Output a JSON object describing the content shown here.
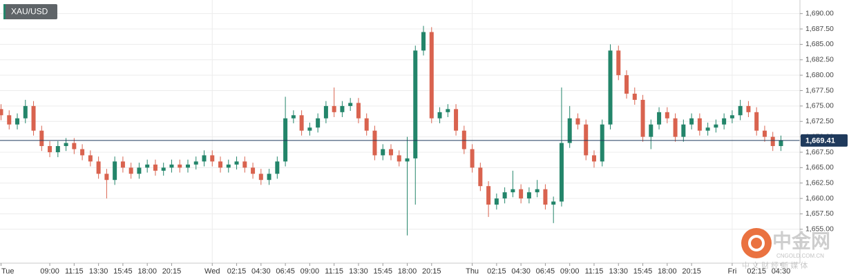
{
  "chart_data": {
    "type": "candlestick",
    "title": "XAU/USD",
    "categories": [
      "Tue",
      null,
      null,
      null,
      null,
      null,
      "09:00",
      null,
      null,
      "11:15",
      null,
      null,
      "13:30",
      null,
      null,
      "15:45",
      null,
      null,
      "18:00",
      null,
      null,
      "20:15",
      null,
      null,
      null,
      null,
      "Wed",
      null,
      null,
      "02:15",
      null,
      null,
      "04:30",
      null,
      null,
      "06:45",
      null,
      null,
      "09:00",
      null,
      null,
      "11:15",
      null,
      null,
      "13:30",
      null,
      null,
      "15:45",
      null,
      null,
      "18:00",
      null,
      null,
      "20:15",
      null,
      null,
      null,
      null,
      "Thu",
      null,
      null,
      "02:15",
      null,
      null,
      "04:30",
      null,
      null,
      "06:45",
      null,
      null,
      "09:00",
      null,
      null,
      "11:15",
      null,
      null,
      "13:30",
      null,
      null,
      "15:45",
      null,
      null,
      "18:00",
      null,
      null,
      "20:15",
      null,
      null,
      null,
      null,
      "Fri",
      null,
      null,
      "02:15",
      null,
      null,
      "04:30"
    ],
    "day_breaks": [
      26,
      58,
      90
    ],
    "open": [
      1674.5,
      1673.5,
      1672,
      1673,
      1675,
      1671,
      1668.5,
      1667.5,
      1668.5,
      1669,
      1668,
      1667,
      1666,
      1664,
      1663,
      1666,
      1665,
      1664,
      1665,
      1665.5,
      1664.5,
      1665,
      1665.5,
      1665,
      1665.5,
      1666,
      1667,
      1666,
      1665,
      1665.5,
      1666,
      1665,
      1664,
      1663,
      1664,
      1666,
      1673,
      1673.5,
      1671,
      1671.5,
      1673,
      1675,
      1674,
      1675,
      1675.5,
      1673,
      1671,
      1667,
      1668,
      1667,
      1666,
      1666.5,
      1684,
      1687,
      1673,
      1674,
      1674.5,
      1671,
      1668,
      1665,
      1662,
      1659,
      1660,
      1661,
      1661.5,
      1660,
      1661,
      1661.5,
      1659,
      1659.5,
      1669,
      1673,
      1672,
      1667,
      1666,
      1672,
      1684,
      1680,
      1677,
      1676,
      1670,
      1672,
      1674,
      1673,
      1670,
      1672,
      1673,
      1671,
      1671.5,
      1672,
      1673,
      1673.5,
      1675,
      1674,
      1671,
      1670,
      1668.5
    ],
    "high": [
      1675.3,
      1674.3,
      1673.8,
      1676,
      1675.8,
      1671.8,
      1669.3,
      1669.3,
      1669.8,
      1669.8,
      1668.8,
      1667.8,
      1666.8,
      1664.8,
      1666.8,
      1666.8,
      1665.8,
      1665.8,
      1666.3,
      1666.3,
      1665.8,
      1666.3,
      1666.3,
      1666.3,
      1666.8,
      1667.8,
      1667.8,
      1666.8,
      1666.3,
      1666.8,
      1666.8,
      1665.8,
      1664.8,
      1664.8,
      1666.8,
      1676.5,
      1674.3,
      1674.3,
      1672.3,
      1673.8,
      1675.8,
      1678,
      1675.8,
      1676.3,
      1676.3,
      1673.8,
      1671.8,
      1668.8,
      1668.8,
      1667.8,
      1670,
      1684.8,
      1688,
      1687.8,
      1674.8,
      1675.3,
      1675.3,
      1671.8,
      1668.8,
      1665.8,
      1662.8,
      1660.8,
      1661.8,
      1664.5,
      1662.3,
      1661.8,
      1663,
      1662.3,
      1660.3,
      1678,
      1675,
      1673.8,
      1672.8,
      1667.8,
      1672.8,
      1685,
      1684.8,
      1680.8,
      1678,
      1676.8,
      1672.8,
      1674.8,
      1674.8,
      1673.8,
      1672.8,
      1673.8,
      1673.8,
      1672.3,
      1672.8,
      1673.8,
      1674.3,
      1676,
      1675.8,
      1674.8,
      1671.8,
      1670.8,
      1670.2
    ],
    "low": [
      1672.7,
      1671.2,
      1671.2,
      1672.2,
      1670.2,
      1667.7,
      1666.7,
      1666.7,
      1667.7,
      1667.2,
      1666.2,
      1665.2,
      1663.2,
      1660,
      1662.2,
      1664.2,
      1663.2,
      1663.2,
      1664.2,
      1663.7,
      1663.7,
      1664.2,
      1664.2,
      1664.2,
      1664.7,
      1665.2,
      1665.2,
      1664.2,
      1664.2,
      1664.7,
      1664.2,
      1663.2,
      1662.2,
      1662.2,
      1663.2,
      1665.2,
      1672.2,
      1670.2,
      1670.2,
      1670.7,
      1672.2,
      1673.2,
      1673.2,
      1674.2,
      1672.2,
      1670.2,
      1666.2,
      1666.2,
      1666.2,
      1665.2,
      1654,
      1659,
      1683.2,
      1672.2,
      1672.2,
      1673.2,
      1670.2,
      1667.2,
      1664.2,
      1661.2,
      1657,
      1658.2,
      1659.2,
      1660.2,
      1659.2,
      1659.2,
      1660.2,
      1658.2,
      1656,
      1658.7,
      1668.2,
      1671.2,
      1666.2,
      1665,
      1665.2,
      1671.2,
      1679.2,
      1676.2,
      1675.2,
      1669.2,
      1668,
      1671.2,
      1672.2,
      1669.2,
      1669.2,
      1671.2,
      1670.2,
      1670.2,
      1670.7,
      1671.2,
      1672.2,
      1672.7,
      1673.2,
      1670.2,
      1669.2,
      1667.7,
      1667.7
    ],
    "close": [
      1673.5,
      1672,
      1673,
      1675,
      1671,
      1668.5,
      1667.5,
      1668.5,
      1669,
      1668,
      1667,
      1666,
      1664,
      1663,
      1666,
      1665,
      1664,
      1665,
      1665.5,
      1664.5,
      1665,
      1665.5,
      1665,
      1665.5,
      1666,
      1667,
      1666,
      1665,
      1665.5,
      1666,
      1665,
      1664,
      1663,
      1664,
      1666,
      1673,
      1673.5,
      1671,
      1671.5,
      1673,
      1675,
      1674,
      1675,
      1675.5,
      1673,
      1671,
      1667,
      1668,
      1667,
      1666,
      1666.5,
      1684,
      1687,
      1673,
      1674,
      1674.5,
      1671,
      1668,
      1665,
      1662,
      1659,
      1660,
      1661,
      1661.5,
      1660,
      1661,
      1661.5,
      1659,
      1659.5,
      1669,
      1673,
      1672,
      1667,
      1666,
      1672,
      1684,
      1680,
      1677,
      1676,
      1670,
      1672,
      1674,
      1673,
      1670,
      1672,
      1673,
      1671,
      1671.5,
      1672,
      1673,
      1673.5,
      1675,
      1674,
      1671,
      1670,
      1668.5,
      1669.4
    ],
    "up_color": "#23856a",
    "down_color": "#d9634f",
    "last_price": {
      "value": 1669.41,
      "label": "1,669.41"
    },
    "ylim": [
      1649.5,
      1692.2
    ],
    "yticks": [
      {
        "value": 1655,
        "label": "1,655.00"
      },
      {
        "value": 1657.5,
        "label": "1,657.50"
      },
      {
        "value": 1660,
        "label": "1,660.00"
      },
      {
        "value": 1662.5,
        "label": "1,662.50"
      },
      {
        "value": 1665,
        "label": "1,665.00"
      },
      {
        "value": 1667.5,
        "label": "1,667.50"
      },
      {
        "value": 1670,
        "label": "1,670.00"
      },
      {
        "value": 1672.5,
        "label": "1,672.50"
      },
      {
        "value": 1675,
        "label": "1,675.00"
      },
      {
        "value": 1677.5,
        "label": "1,677.50"
      },
      {
        "value": 1680,
        "label": "1,680.00"
      },
      {
        "value": 1682.5,
        "label": "1,682.50"
      },
      {
        "value": 1685,
        "label": "1,685.00"
      },
      {
        "value": 1687.5,
        "label": "1,687.50"
      },
      {
        "value": 1690,
        "label": "1,690.00"
      }
    ],
    "grid": true,
    "watermark": {
      "brand": "中金网",
      "domain": "CNGOLD.COM.CN",
      "slogan": "中 文 财 经 新 媒 体"
    }
  }
}
